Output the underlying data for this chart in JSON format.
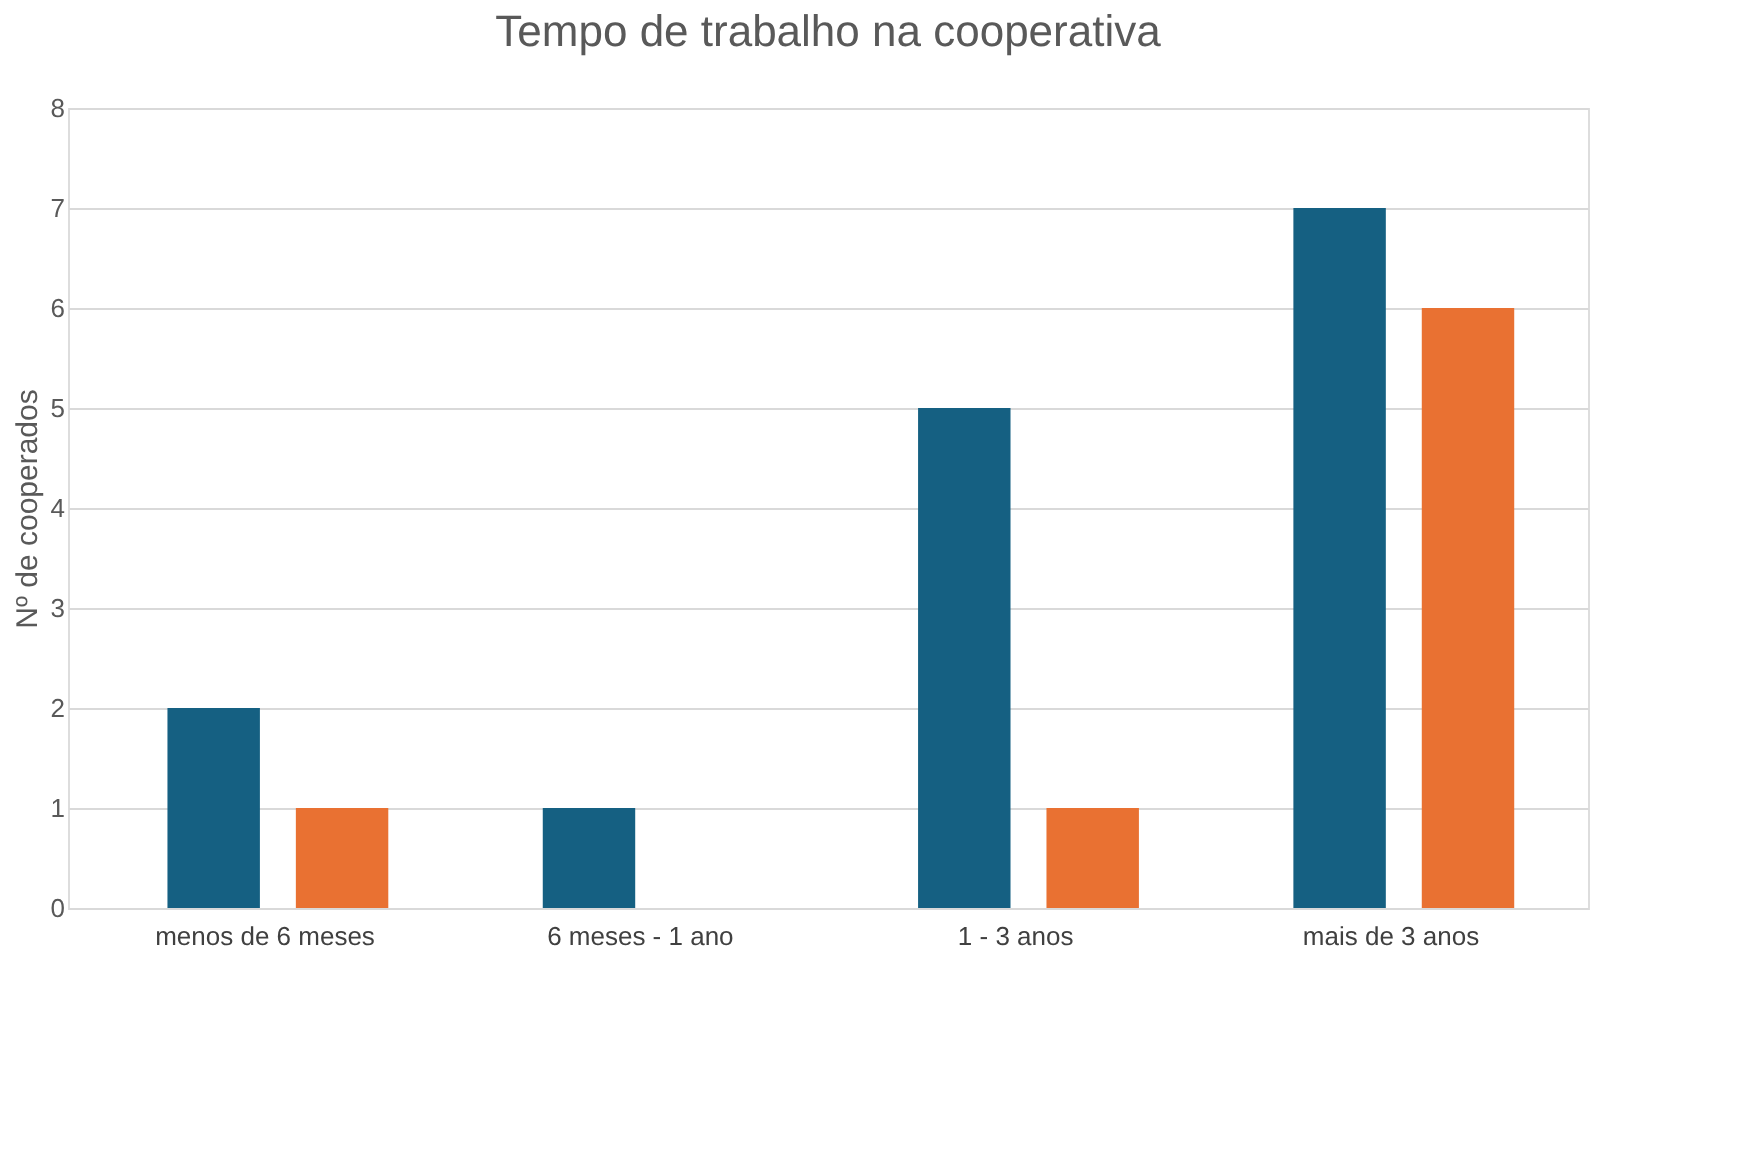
{
  "chart_data": {
    "type": "bar",
    "title": "Tempo de trabalho na cooperativa",
    "ylabel": "Nº de cooperados",
    "categories": [
      "menos de 6 meses",
      "6 meses - 1 ano",
      "1 - 3 anos",
      "mais de 3 anos"
    ],
    "series": [
      {
        "color": "#156082",
        "values": [
          2,
          1,
          5,
          7
        ]
      },
      {
        "color": "#e97132",
        "values": [
          1,
          0,
          1,
          6
        ]
      }
    ],
    "ylim": [
      0,
      8
    ],
    "yticks": [
      0,
      1,
      2,
      3,
      4,
      5,
      6,
      7,
      8
    ],
    "grid": "y",
    "legend": false
  }
}
